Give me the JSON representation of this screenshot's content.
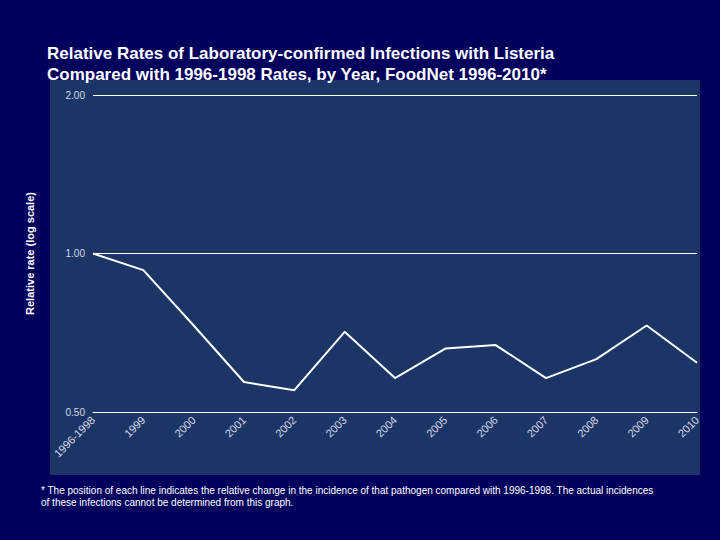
{
  "chart_data": {
    "type": "line",
    "title": [
      "Relative Rates of Laboratory-confirmed Infections with Listeria",
      "Compared with 1996-1998 Rates, by Year, FoodNet 1996-2010*"
    ],
    "footnote": "* The position of each line indicates the relative change in the incidence of that pathogen compared with 1996-1998. The actual incidences of these infections cannot be determined from this graph.",
    "y_label": "Relative rate (log scale)",
    "categories": [
      "1996-1998",
      "1999",
      "2000",
      "2001",
      "2002",
      "2003",
      "2004",
      "2005",
      "2006",
      "2007",
      "2008",
      "2009",
      "2010"
    ],
    "values": [
      1.0,
      0.93,
      0.73,
      0.57,
      0.55,
      0.71,
      0.58,
      0.66,
      0.67,
      0.58,
      0.63,
      0.73,
      0.62
    ],
    "color": "#ffffff",
    "log": "y",
    "ylim": [
      0.5,
      2
    ],
    "yticks": [
      {
        "value": 0.5,
        "label": "0.50"
      },
      {
        "value": 1,
        "label": "1.00"
      },
      {
        "value": 2,
        "label": "2.00"
      }
    ],
    "grid": true
  }
}
